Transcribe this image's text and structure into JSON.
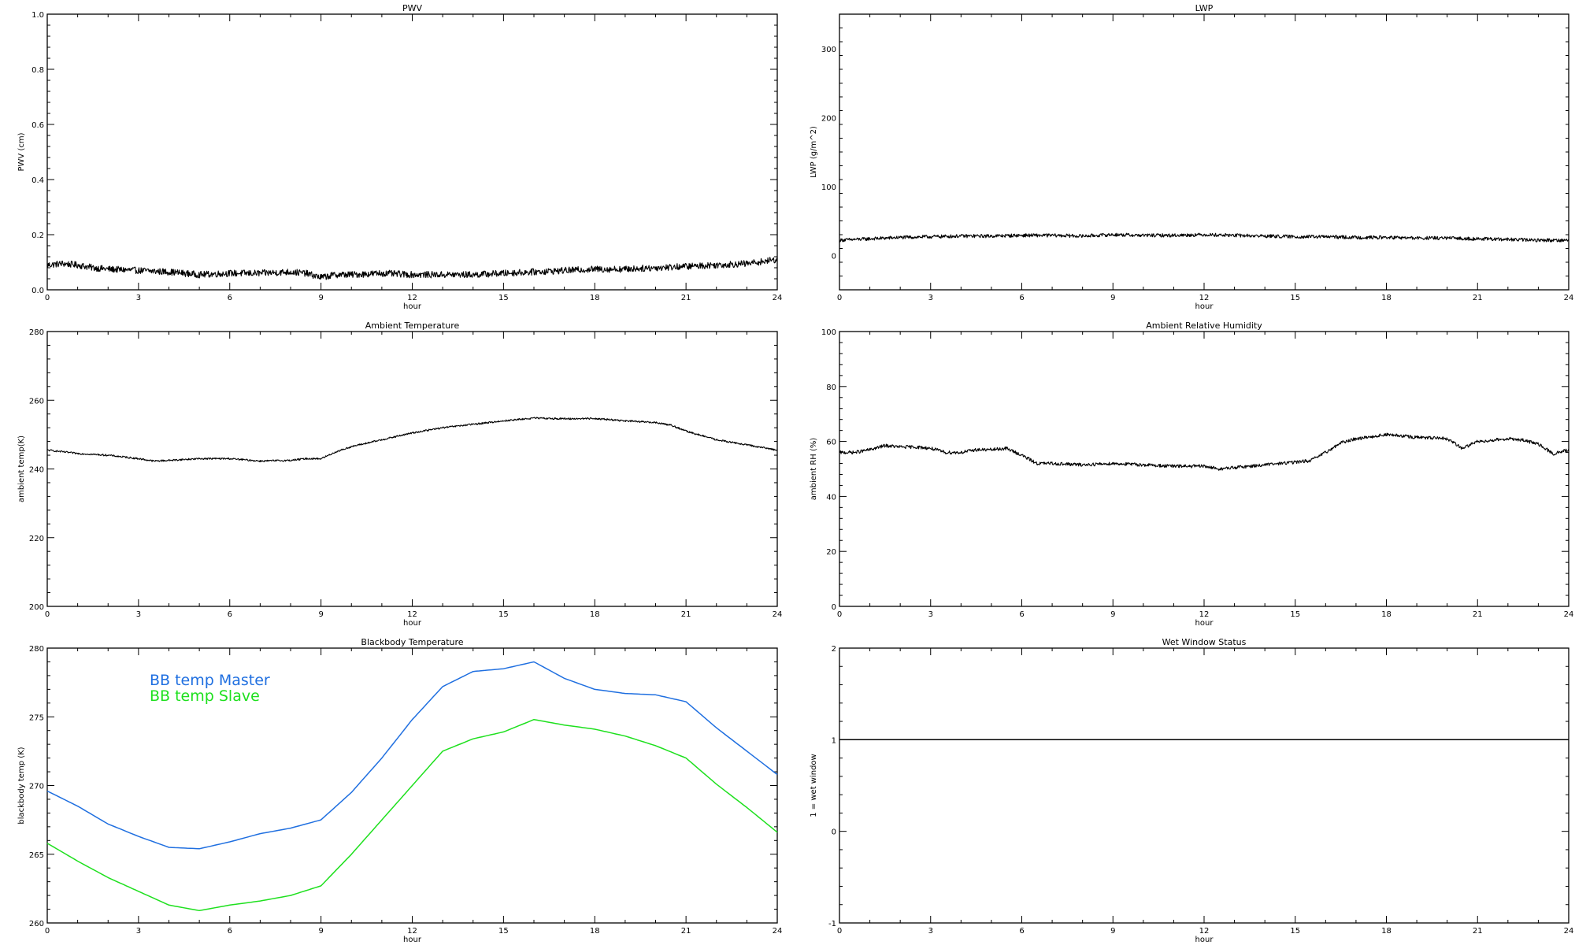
{
  "colors": {
    "axis": "#000000",
    "master": "#1f6fe0",
    "slave": "#1ee01e",
    "line": "#000000"
  },
  "chart_data": [
    {
      "id": "pwv",
      "type": "line",
      "title": "PWV",
      "xlabel": "hour",
      "ylabel": "PWV (cm)",
      "xlim": [
        0,
        24
      ],
      "ylim": [
        0,
        1.0
      ],
      "xticks": [
        "0",
        "3",
        "6",
        "9",
        "12",
        "15",
        "18",
        "21",
        "24"
      ],
      "xtick_values": [
        0,
        3,
        6,
        9,
        12,
        15,
        18,
        21,
        24
      ],
      "yticks": [
        "0.0",
        "0.2",
        "0.4",
        "0.6",
        "0.8",
        "1.0"
      ],
      "ytick_values": [
        0,
        0.2,
        0.4,
        0.6,
        0.8,
        1.0
      ],
      "noise": 0.012,
      "series": [
        {
          "color": "#000000",
          "x": [
            0,
            0.5,
            1,
            1.5,
            2,
            3,
            4,
            5,
            6,
            7,
            8,
            8.5,
            9,
            9.5,
            10,
            11,
            12,
            13,
            14,
            15,
            16,
            17,
            18,
            19,
            20,
            21,
            22,
            23,
            24
          ],
          "y": [
            0.09,
            0.095,
            0.09,
            0.08,
            0.075,
            0.07,
            0.065,
            0.055,
            0.06,
            0.06,
            0.065,
            0.06,
            0.045,
            0.055,
            0.055,
            0.06,
            0.055,
            0.055,
            0.055,
            0.06,
            0.065,
            0.07,
            0.075,
            0.075,
            0.08,
            0.085,
            0.09,
            0.095,
            0.11
          ]
        }
      ]
    },
    {
      "id": "lwp",
      "type": "line",
      "title": "LWP",
      "xlabel": "hour",
      "ylabel": "LWP (g/m^2)",
      "xlim": [
        0,
        24
      ],
      "ylim": [
        -50,
        350
      ],
      "xticks": [
        "0",
        "3",
        "6",
        "9",
        "12",
        "15",
        "18",
        "21",
        "24"
      ],
      "xtick_values": [
        0,
        3,
        6,
        9,
        12,
        15,
        18,
        21,
        24
      ],
      "yticks": [
        "0",
        "100",
        "200",
        "300"
      ],
      "ytick_values": [
        0,
        100,
        200,
        300
      ],
      "noise": 2.5,
      "series": [
        {
          "color": "#000000",
          "x": [
            0,
            1,
            2,
            3,
            4,
            5,
            6,
            7,
            8,
            9,
            10,
            11,
            12,
            13,
            14,
            15,
            16,
            17,
            18,
            19,
            20,
            21,
            22,
            23,
            24
          ],
          "y": [
            22,
            24,
            26,
            27,
            28,
            28,
            29,
            29,
            28,
            30,
            29,
            29,
            30,
            29,
            28,
            27,
            27,
            26,
            26,
            25,
            25,
            24,
            23,
            22,
            22
          ]
        }
      ]
    },
    {
      "id": "temp",
      "type": "line",
      "title": "Ambient Temperature",
      "xlabel": "hour",
      "ylabel": "ambient temp(K)",
      "xlim": [
        0,
        24
      ],
      "ylim": [
        200,
        280
      ],
      "xticks": [
        "0",
        "3",
        "6",
        "9",
        "12",
        "15",
        "18",
        "21",
        "24"
      ],
      "xtick_values": [
        0,
        3,
        6,
        9,
        12,
        15,
        18,
        21,
        24
      ],
      "yticks": [
        "200",
        "220",
        "240",
        "260",
        "280"
      ],
      "ytick_values": [
        200,
        220,
        240,
        260,
        280
      ],
      "noise": 0.25,
      "series": [
        {
          "color": "#000000",
          "x": [
            0,
            1,
            2,
            3,
            3.5,
            4,
            5,
            6,
            7,
            8,
            8.5,
            9,
            9.5,
            10,
            11,
            12,
            13,
            14,
            15,
            16,
            17,
            18,
            19,
            20,
            20.5,
            21,
            22,
            23,
            24
          ],
          "y": [
            245.5,
            244.5,
            244,
            243,
            242.3,
            242.5,
            243,
            243,
            242.3,
            242.5,
            243,
            243,
            245,
            246.5,
            248.5,
            250.5,
            252,
            253,
            254,
            254.8,
            254.6,
            254.7,
            254,
            253.5,
            252.8,
            251,
            248.5,
            247,
            245.5
          ]
        }
      ]
    },
    {
      "id": "rh",
      "type": "line",
      "title": "Ambient Relative Humidity",
      "xlabel": "hour",
      "ylabel": "ambient RH (%)",
      "xlim": [
        0,
        24
      ],
      "ylim": [
        0,
        100
      ],
      "xticks": [
        "0",
        "3",
        "6",
        "9",
        "12",
        "15",
        "18",
        "21",
        "24"
      ],
      "xtick_values": [
        0,
        3,
        6,
        9,
        12,
        15,
        18,
        21,
        24
      ],
      "yticks": [
        "0",
        "20",
        "40",
        "60",
        "80",
        "100"
      ],
      "ytick_values": [
        0,
        20,
        40,
        60,
        80,
        100
      ],
      "noise": 0.6,
      "series": [
        {
          "color": "#000000",
          "x": [
            0,
            0.5,
            1,
            1.5,
            2,
            2.5,
            3,
            3.5,
            4,
            4.5,
            5,
            5.5,
            6,
            6.5,
            7,
            8,
            9,
            10,
            11,
            12,
            12.5,
            13,
            14,
            15,
            15.5,
            16,
            16.5,
            17,
            18,
            19,
            20,
            20.5,
            21,
            22,
            22.5,
            23,
            23.5,
            24
          ],
          "y": [
            56,
            56,
            57,
            58.5,
            58,
            58,
            57.5,
            56,
            56,
            57,
            57,
            57.5,
            55,
            52,
            52,
            51.5,
            52,
            51.5,
            51,
            51,
            50,
            50.5,
            51.5,
            52.5,
            53,
            56,
            59.5,
            61,
            62.5,
            61.5,
            61,
            57.5,
            60,
            61,
            60.5,
            59,
            55.5,
            57
          ]
        }
      ]
    },
    {
      "id": "bb",
      "type": "line",
      "title": "Blackbody Temperature",
      "xlabel": "hour",
      "ylabel": "blackbody temp (K)",
      "xlim": [
        0,
        24
      ],
      "ylim": [
        260,
        280
      ],
      "xticks": [
        "0",
        "3",
        "6",
        "9",
        "12",
        "15",
        "18",
        "21",
        "24"
      ],
      "xtick_values": [
        0,
        3,
        6,
        9,
        12,
        15,
        18,
        21,
        24
      ],
      "yticks": [
        "260",
        "265",
        "270",
        "275",
        "280"
      ],
      "ytick_values": [
        260,
        265,
        270,
        275,
        280
      ],
      "noise": 0,
      "legend_placement": "top-left",
      "series": [
        {
          "name": "BB temp Master",
          "color": "#1f6fe0",
          "x": [
            0,
            1,
            2,
            3,
            4,
            5,
            6,
            7,
            8,
            9,
            10,
            11,
            12,
            13,
            14,
            15,
            16,
            17,
            18,
            19,
            20,
            21,
            22,
            23,
            24
          ],
          "y": [
            269.6,
            268.5,
            267.2,
            266.3,
            265.5,
            265.4,
            265.9,
            266.5,
            266.9,
            267.5,
            269.5,
            272.0,
            274.8,
            277.2,
            278.3,
            278.5,
            279.0,
            277.8,
            277.0,
            276.7,
            276.6,
            276.1,
            274.2,
            272.5,
            270.8
          ]
        },
        {
          "name": "BB temp Slave",
          "color": "#1ee01e",
          "x": [
            0,
            1,
            2,
            3,
            4,
            5,
            6,
            7,
            8,
            9,
            10,
            11,
            12,
            13,
            14,
            15,
            16,
            17,
            18,
            19,
            20,
            21,
            22,
            23,
            24
          ],
          "y": [
            265.8,
            264.5,
            263.3,
            262.3,
            261.3,
            260.9,
            261.3,
            261.6,
            262.0,
            262.7,
            265.0,
            267.5,
            270.0,
            272.5,
            273.4,
            273.9,
            274.8,
            274.4,
            274.1,
            273.6,
            272.9,
            272.0,
            270.1,
            268.4,
            266.6
          ]
        }
      ]
    },
    {
      "id": "wet",
      "type": "line",
      "title": "Wet Window Status",
      "xlabel": "hour",
      "ylabel": "1 = wet window",
      "xlim": [
        0,
        24
      ],
      "ylim": [
        -1,
        2
      ],
      "xticks": [
        "0",
        "3",
        "6",
        "9",
        "12",
        "15",
        "18",
        "21",
        "24"
      ],
      "xtick_values": [
        0,
        3,
        6,
        9,
        12,
        15,
        18,
        21,
        24
      ],
      "yticks": [
        "-1",
        "0",
        "1",
        "2"
      ],
      "ytick_values": [
        -1,
        0,
        1,
        2
      ],
      "noise": 0,
      "series": [
        {
          "color": "#000000",
          "x": [
            0,
            24
          ],
          "y": [
            1,
            1
          ]
        }
      ]
    }
  ]
}
